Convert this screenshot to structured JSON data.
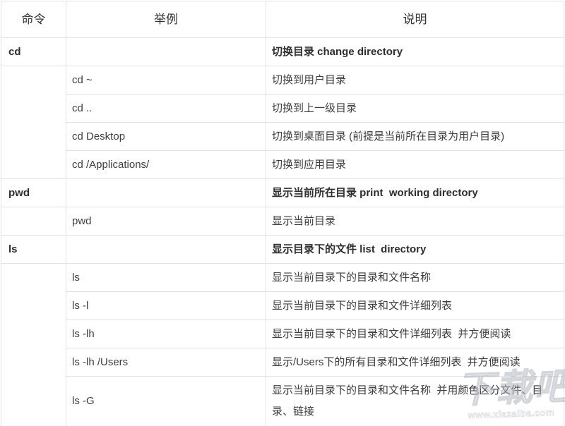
{
  "table": {
    "headers": [
      "命令",
      "举例",
      "说明"
    ],
    "rows": [
      {
        "cmd": "cd",
        "example": "",
        "desc": "切换目录 change directory"
      },
      {
        "cmd": "",
        "example": "cd ~",
        "desc": "切换到用户目录"
      },
      {
        "cmd": "",
        "example": "cd ..",
        "desc": "切换到上一级目录"
      },
      {
        "cmd": "",
        "example": "cd Desktop",
        "desc": "切换到桌面目录 (前提是当前所在目录为用户目录)"
      },
      {
        "cmd": "",
        "example": "cd /Applications/",
        "desc": "切换到应用目录"
      },
      {
        "cmd": "pwd",
        "example": "",
        "desc": "显示当前所在目录 print  working directory"
      },
      {
        "cmd": "",
        "example": "pwd",
        "desc": "显示当前目录"
      },
      {
        "cmd": "ls",
        "example": "",
        "desc": "显示目录下的文件 list  directory"
      },
      {
        "cmd": "",
        "example": "ls",
        "desc": "显示当前目录下的目录和文件名称"
      },
      {
        "cmd": "",
        "example": "ls -l",
        "desc": "显示当前目录下的目录和文件详细列表"
      },
      {
        "cmd": "",
        "example": "ls -lh",
        "desc": "显示当前目录下的目录和文件详细列表  并方便阅读"
      },
      {
        "cmd": "",
        "example": "ls -lh /Users",
        "desc": "显示/Users下的所有目录和文件详细列表  并方便阅读"
      },
      {
        "cmd": "",
        "example": "ls -G",
        "desc": "显示当前目录下的目录和文件名称  并用颜色区分文件、目录、链接"
      }
    ]
  },
  "watermark": {
    "logo": "下载吧",
    "url": "www.xiazaiba.com"
  },
  "colors": {
    "border": "#dfe2e7",
    "text": "#3d3d3d",
    "bold_text": "#2e2e2e",
    "background": "#ffffff"
  }
}
